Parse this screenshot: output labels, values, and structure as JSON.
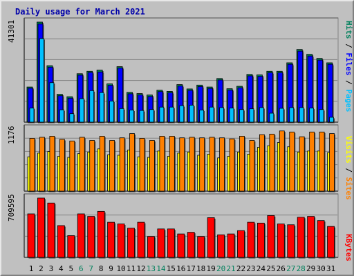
{
  "title": "Daily usage for March 2021",
  "colors": {
    "background": "#c0c0c0",
    "hits": "#00805c",
    "files": "#0000ff",
    "pages": "#00c0ff",
    "visits": "#ffff00",
    "sites": "#ff8000",
    "kbytes": "#ff0000",
    "weekend_day": "#00805c",
    "weekday": "#000000"
  },
  "chart_data": [
    {
      "type": "bar",
      "panel": "hits-files-pages",
      "ymax_label": "41301",
      "ylim": [
        0,
        41301
      ],
      "legend": {
        "hits": "Hits",
        "files": "Files",
        "pages": "Pages",
        "sep": " / "
      },
      "categories": [
        "1",
        "2",
        "3",
        "4",
        "5",
        "6",
        "7",
        "8",
        "9",
        "10",
        "11",
        "12",
        "13",
        "14",
        "15",
        "16",
        "17",
        "18",
        "19",
        "20",
        "21",
        "22",
        "23",
        "24",
        "25",
        "26",
        "27",
        "28",
        "29",
        "30",
        "31"
      ],
      "series": [
        {
          "name": "Hits",
          "values": [
            14500,
            41301,
            23300,
            11500,
            10500,
            20000,
            21000,
            21500,
            15800,
            22900,
            12300,
            11800,
            11200,
            13200,
            12700,
            15500,
            13700,
            15300,
            14500,
            18000,
            13800,
            14800,
            19700,
            19500,
            21000,
            21000,
            24500,
            30000,
            28000,
            26300,
            24500
          ]
        },
        {
          "name": "Files",
          "values": [
            14000,
            40500,
            22700,
            10900,
            9900,
            19400,
            20500,
            20700,
            15200,
            22300,
            11700,
            11200,
            10600,
            12600,
            12100,
            14900,
            13100,
            14700,
            13900,
            17400,
            13200,
            14200,
            19100,
            18900,
            20400,
            20400,
            23900,
            29300,
            27300,
            25600,
            23900
          ]
        },
        {
          "name": "Pages",
          "values": [
            5800,
            34500,
            16300,
            5100,
            3500,
            9700,
            13000,
            12200,
            8700,
            5600,
            5000,
            4800,
            5200,
            6200,
            6200,
            6800,
            7000,
            5000,
            6200,
            6000,
            5800,
            5200,
            5500,
            6000,
            3700,
            5700,
            6000,
            6000,
            5800,
            5200,
            2000
          ]
        }
      ]
    },
    {
      "type": "bar",
      "panel": "visits-sites",
      "ymax_label": "1176",
      "ylim": [
        0,
        1176
      ],
      "legend": {
        "sites": "Sites",
        "visits": "Visits",
        "sep": " / "
      },
      "categories": [
        "1",
        "2",
        "3",
        "4",
        "5",
        "6",
        "7",
        "8",
        "9",
        "10",
        "11",
        "12",
        "13",
        "14",
        "15",
        "16",
        "17",
        "18",
        "19",
        "20",
        "21",
        "22",
        "23",
        "24",
        "25",
        "26",
        "27",
        "28",
        "29",
        "30",
        "31"
      ],
      "series": [
        {
          "name": "Sites",
          "values": [
            1000,
            1020,
            1040,
            980,
            950,
            1020,
            960,
            1040,
            960,
            1010,
            1090,
            1000,
            960,
            1040,
            1040,
            1010,
            1020,
            1010,
            1020,
            1010,
            990,
            1040,
            960,
            1070,
            1080,
            1140,
            1120,
            1030,
            1120,
            1120,
            1090
          ]
        },
        {
          "name": "Visits",
          "values": [
            650,
            720,
            750,
            660,
            640,
            710,
            740,
            800,
            690,
            680,
            780,
            650,
            640,
            760,
            660,
            720,
            740,
            680,
            700,
            630,
            660,
            740,
            700,
            830,
            860,
            920,
            840,
            740,
            760,
            760,
            730
          ]
        }
      ]
    },
    {
      "type": "bar",
      "panel": "kbytes",
      "ymax_label": "709595",
      "ylim": [
        0,
        709595
      ],
      "legend": {
        "kbytes": "KBytes"
      },
      "categories": [
        "1",
        "2",
        "3",
        "4",
        "5",
        "6",
        "7",
        "8",
        "9",
        "10",
        "11",
        "12",
        "13",
        "14",
        "15",
        "16",
        "17",
        "18",
        "19",
        "20",
        "21",
        "22",
        "23",
        "24",
        "25",
        "26",
        "27",
        "28",
        "29",
        "30",
        "31"
      ],
      "series": [
        {
          "name": "KBytes",
          "values": [
            520000,
            709595,
            650000,
            380000,
            260000,
            520000,
            490000,
            550000,
            420000,
            400000,
            350000,
            420000,
            250000,
            340000,
            340000,
            280000,
            300000,
            250000,
            475000,
            270000,
            280000,
            320000,
            420000,
            410000,
            500000,
            400000,
            390000,
            480000,
            490000,
            440000,
            370000
          ]
        }
      ]
    }
  ],
  "weekend_days": [
    6,
    7,
    13,
    14,
    20,
    21,
    27,
    28
  ]
}
